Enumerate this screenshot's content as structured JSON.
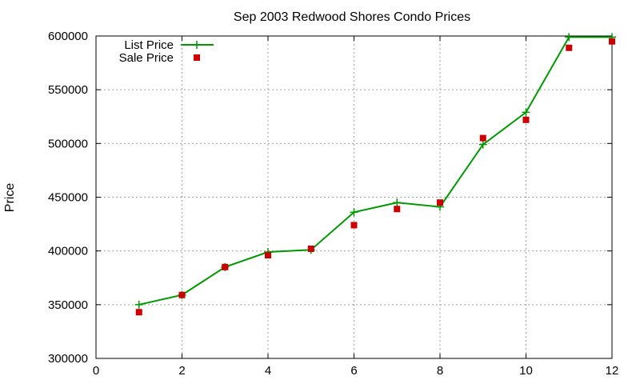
{
  "chart_data": {
    "type": "line",
    "title": "Sep 2003 Redwood Shores Condo Prices",
    "xlabel": "",
    "ylabel": "Price",
    "xlim": [
      0,
      12
    ],
    "ylim": [
      300000,
      600000
    ],
    "xticks": [
      0,
      2,
      4,
      6,
      8,
      10,
      12
    ],
    "yticks": [
      300000,
      350000,
      400000,
      450000,
      500000,
      550000,
      600000
    ],
    "grid": true,
    "legend_position": "top-left",
    "series": [
      {
        "name": "List Price",
        "style": "line-with-plus-markers",
        "color": "#009900",
        "x": [
          1,
          2,
          3,
          4,
          5,
          6,
          7,
          8,
          9,
          10,
          11,
          12
        ],
        "y": [
          350000,
          359000,
          385000,
          399000,
          401000,
          436000,
          445000,
          441000,
          499000,
          529000,
          599000,
          599000
        ]
      },
      {
        "name": "Sale Price",
        "style": "square-markers",
        "color": "#cc0000",
        "x": [
          1,
          2,
          3,
          4,
          5,
          6,
          7,
          8,
          9,
          10,
          11,
          12
        ],
        "y": [
          343000,
          359000,
          385000,
          396000,
          402000,
          424000,
          439000,
          445000,
          505000,
          522000,
          589000,
          595000
        ]
      }
    ]
  }
}
